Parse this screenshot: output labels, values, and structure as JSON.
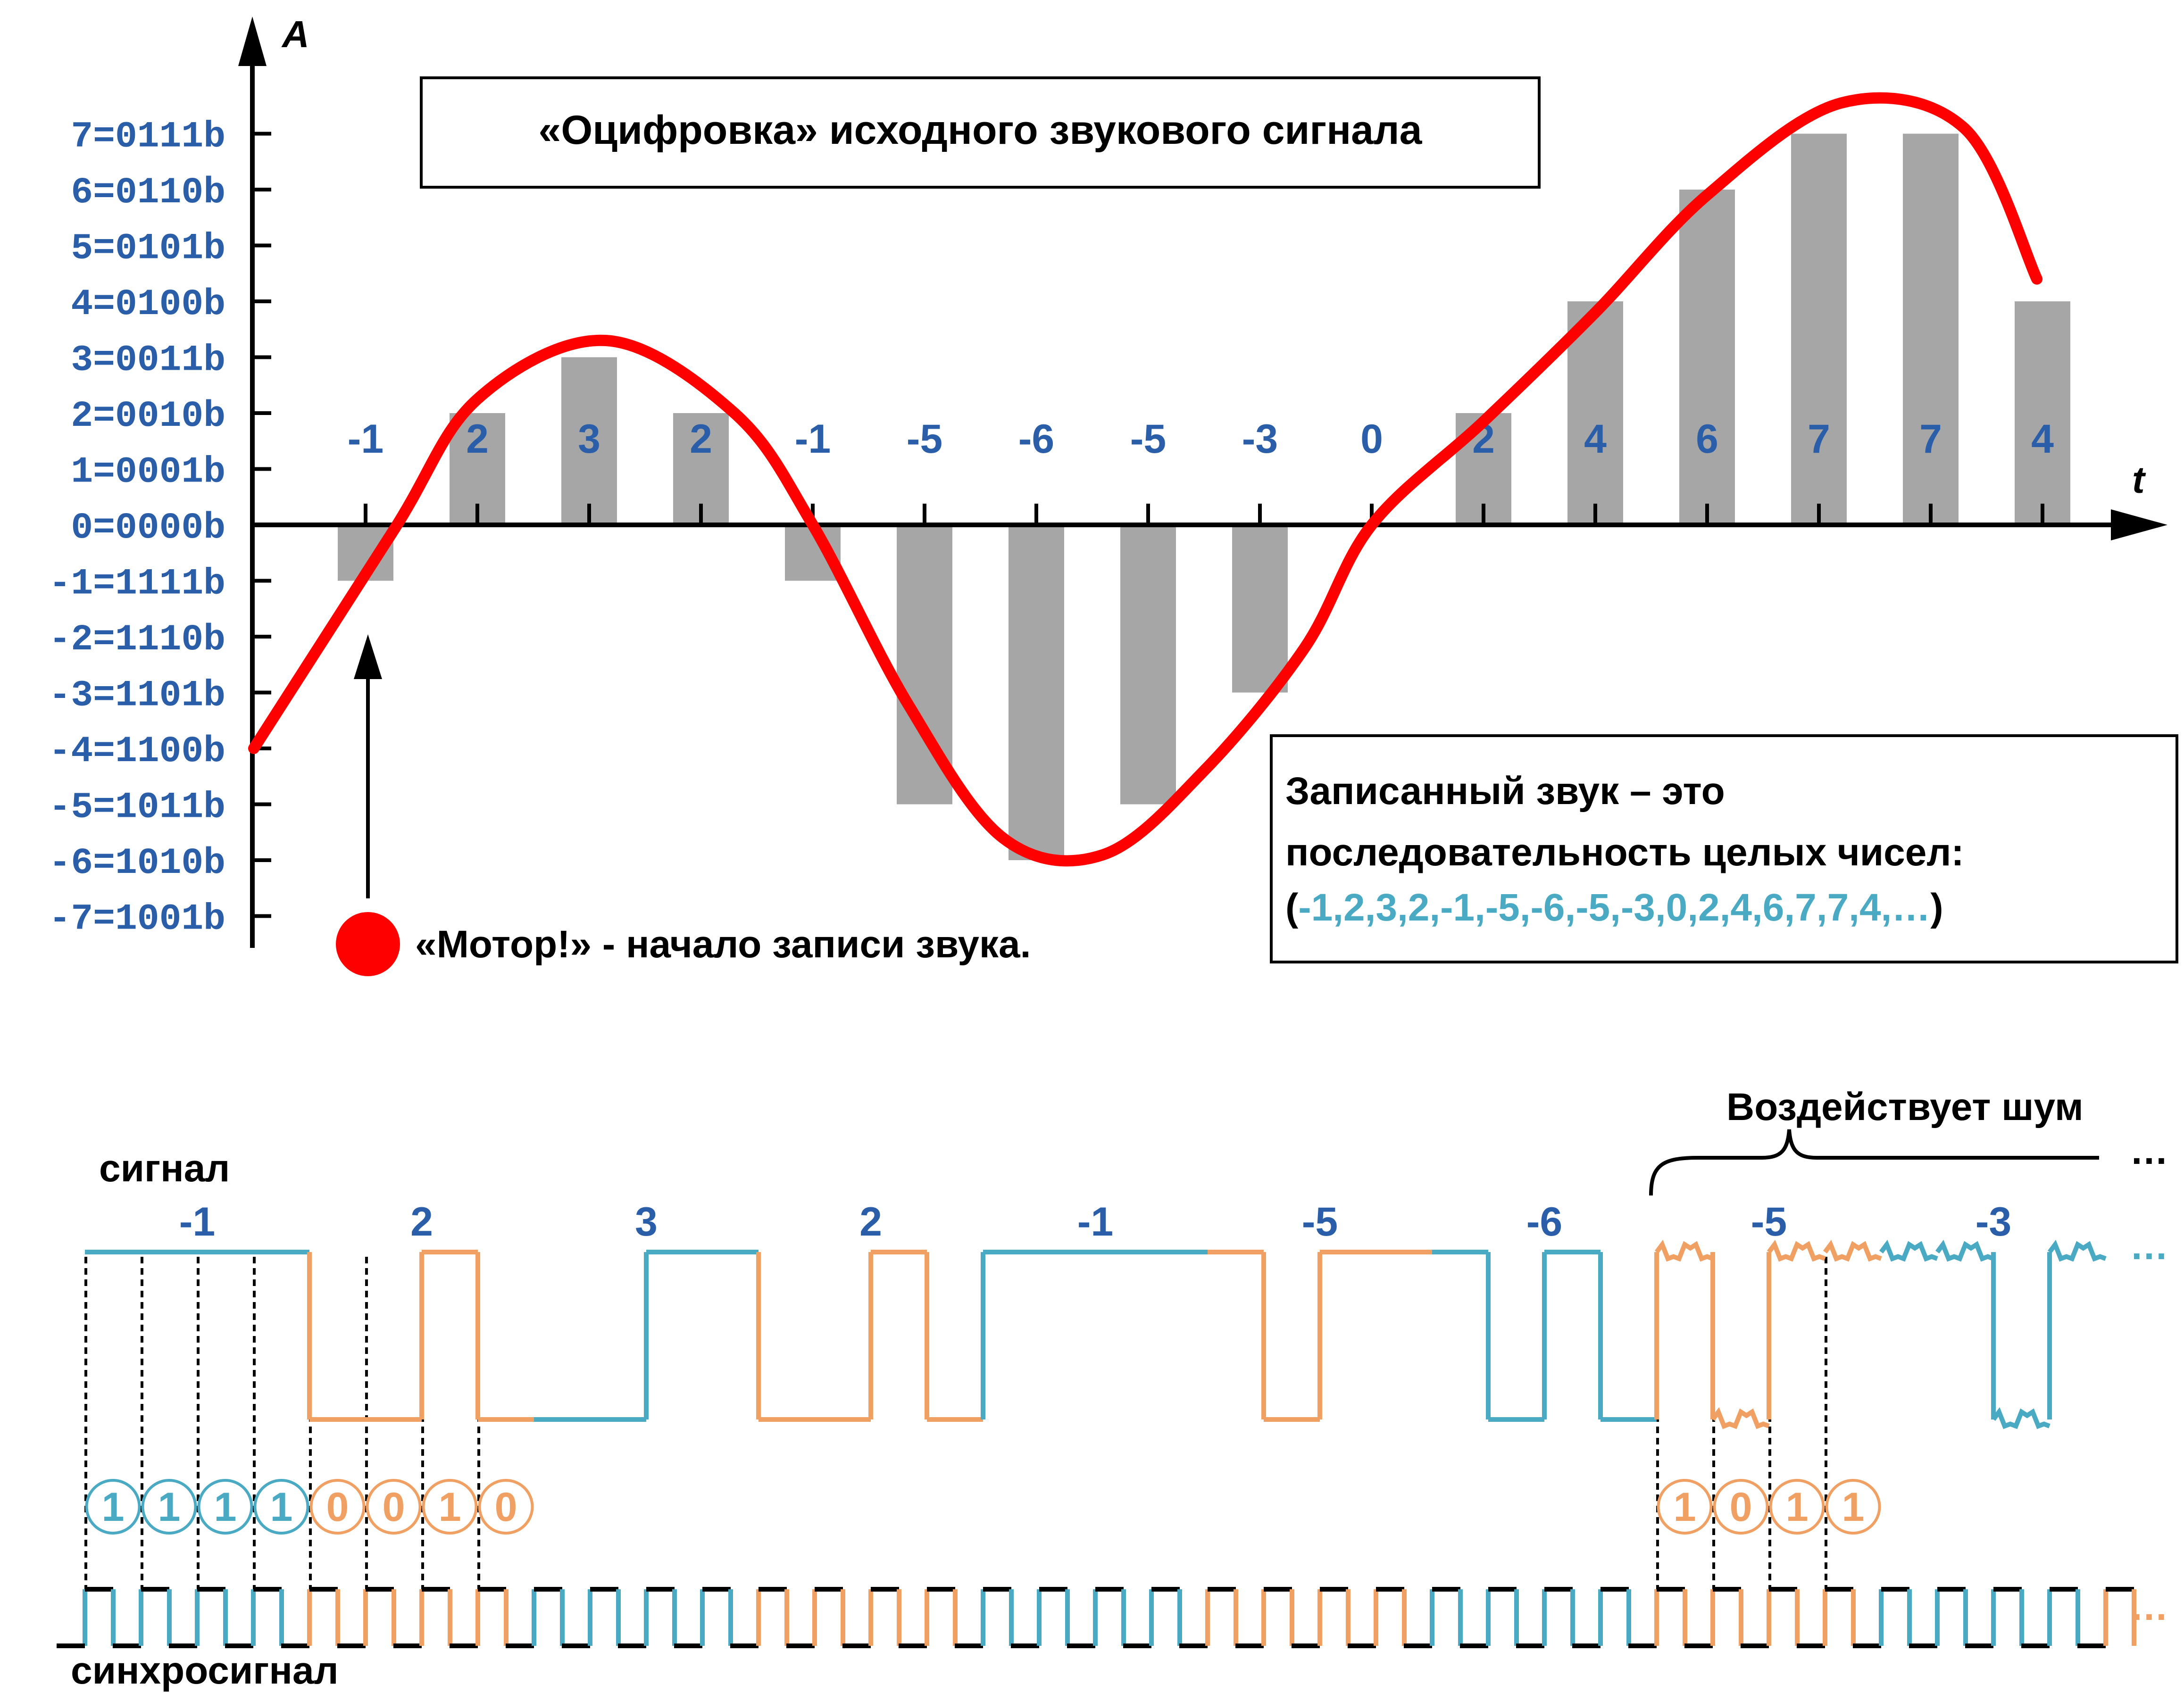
{
  "colors": {
    "axis": "#000000",
    "bar": "#a6a6a6",
    "curve": "#ff0000",
    "label_blue": "#2b5ea8",
    "teal": "#4aaac3",
    "orange": "#f0a062",
    "clock_black": "#000000"
  },
  "axes": {
    "y_name": "A",
    "x_name": "t",
    "y_labels": [
      {
        "value": 7,
        "text": "7=0111b"
      },
      {
        "value": 6,
        "text": "6=0110b"
      },
      {
        "value": 5,
        "text": "5=0101b"
      },
      {
        "value": 4,
        "text": "4=0100b"
      },
      {
        "value": 3,
        "text": "3=0011b"
      },
      {
        "value": 2,
        "text": "2=0010b"
      },
      {
        "value": 1,
        "text": "1=0001b"
      },
      {
        "value": 0,
        "text": "0=0000b"
      },
      {
        "value": -1,
        "text": "-1=1111b"
      },
      {
        "value": -2,
        "text": "-2=1110b"
      },
      {
        "value": -3,
        "text": "-3=1101b"
      },
      {
        "value": -4,
        "text": "-4=1100b"
      },
      {
        "value": -5,
        "text": "-5=1011b"
      },
      {
        "value": -6,
        "text": "-6=1010b"
      },
      {
        "value": -7,
        "text": "-7=1001b"
      }
    ]
  },
  "samples": [
    -1,
    2,
    3,
    2,
    -1,
    -5,
    -6,
    -5,
    -3,
    0,
    2,
    4,
    6,
    7,
    7,
    4
  ],
  "title_box": {
    "text": "«Оцифровка» исходного звукового сигнала"
  },
  "motor": {
    "text": "«Мотор!» - начало записи звука."
  },
  "info_box": {
    "line1": "Записанный звук – это",
    "line2": "последовательность целых чисел:",
    "open_paren": "(",
    "sequence": "-1,2,3,2,-1,-5,-6,-5,-3,0,2,4,6,7,7,4,…",
    "close_paren": ")"
  },
  "signal_label": "сигнал",
  "sync_label": "синхросигнал",
  "noise_label": "Воздействует шум",
  "ellipsis": "…",
  "bits_left": [
    "1",
    "1",
    "1",
    "1",
    "0",
    "0",
    "1",
    "0"
  ],
  "bits_right": [
    "1",
    "0",
    "1",
    "1"
  ],
  "signal_sample_labels": [
    "-1",
    "2",
    "3",
    "2",
    "-1",
    "-5",
    "-6",
    "-5",
    "-3"
  ]
}
